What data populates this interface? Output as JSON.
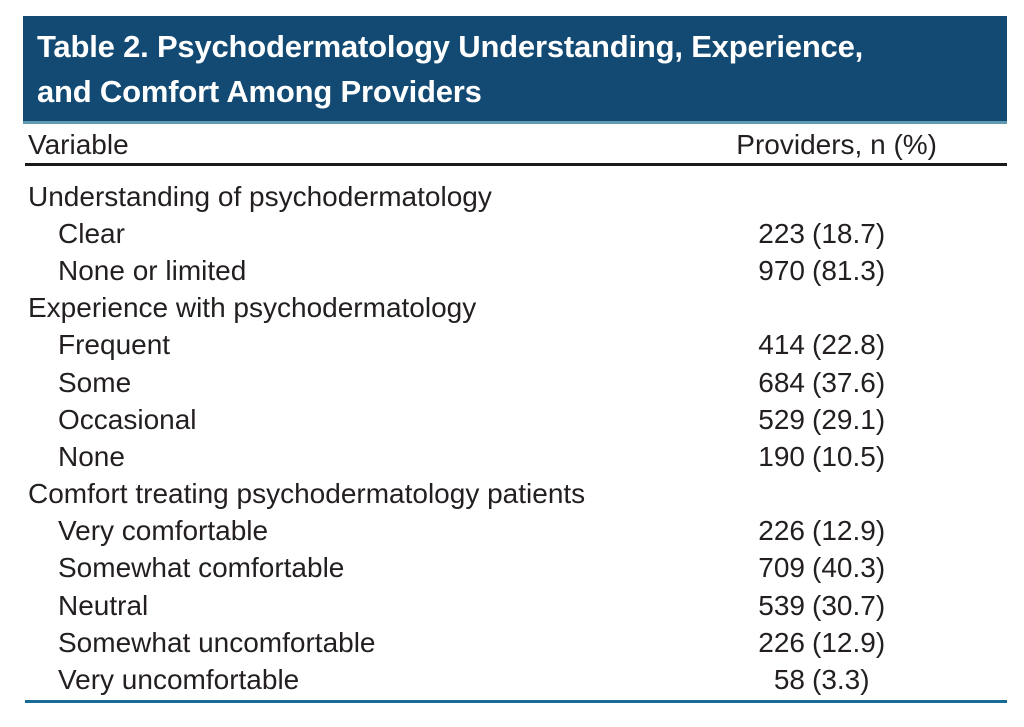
{
  "banner": {
    "title": "Table 2. Psychodermatology Understanding, Experience, and Comfort Among Providers",
    "title_line1": "Table 2. Psychodermatology Understanding, Experience,",
    "title_line2": "and Comfort Among Providers",
    "bg_color": "#124a73",
    "bottom_edge_color": "#5e9bb1",
    "text_color": "#ffffff"
  },
  "columns": {
    "variable": "Variable",
    "providers": "Providers, n (%)"
  },
  "table": {
    "rows": [
      {
        "type": "section",
        "label": "Understanding of psychodermatology"
      },
      {
        "type": "item",
        "label": "Clear",
        "n": "223",
        "pct": "(18.7)"
      },
      {
        "type": "item",
        "label": "None or limited",
        "n": "970",
        "pct": "(81.3)"
      },
      {
        "type": "section",
        "label": "Experience with psychodermatology"
      },
      {
        "type": "item",
        "label": "Frequent",
        "n": "414",
        "pct": "(22.8)"
      },
      {
        "type": "item",
        "label": "Some",
        "n": "684",
        "pct": "(37.6)"
      },
      {
        "type": "item",
        "label": "Occasional",
        "n": "529",
        "pct": "(29.1)"
      },
      {
        "type": "item",
        "label": "None",
        "n": "190",
        "pct": "(10.5)"
      },
      {
        "type": "section",
        "label": "Comfort treating psychodermatology patients"
      },
      {
        "type": "item",
        "label": "Very comfortable",
        "n": "226",
        "pct": "(12.9)"
      },
      {
        "type": "item",
        "label": "Somewhat comfortable",
        "n": "709",
        "pct": "(40.3)"
      },
      {
        "type": "item",
        "label": "Neutral",
        "n": "539",
        "pct": "(30.7)"
      },
      {
        "type": "item",
        "label": "Somewhat uncomfortable",
        "n": "226",
        "pct": "(12.9)"
      },
      {
        "type": "item",
        "label": "Very uncomfortable",
        "n": "58",
        "pct": "(3.3)"
      }
    ]
  },
  "colors": {
    "header_rule": "#1a1a1a",
    "bottom_rule": "#1a6c96",
    "body_text": "#231f20"
  }
}
